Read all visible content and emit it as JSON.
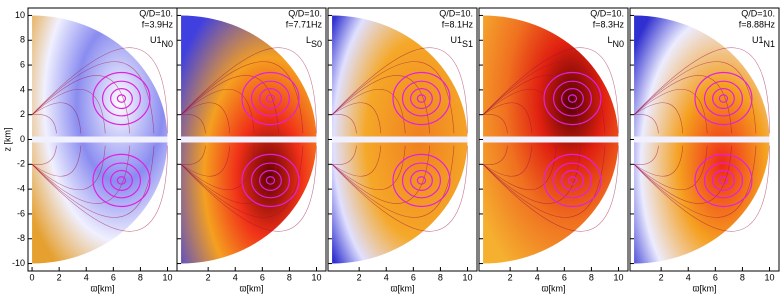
{
  "chart_data": [
    {
      "type": "field",
      "annotation": [
        "Q/D=10.",
        "f=3.9Hz"
      ],
      "mode": "U1",
      "mode_sub": "N0",
      "xlabel": "ϖ[km]",
      "ylabel": "z [km]",
      "show_yticklabels": true,
      "xlim": [
        -0.3,
        10.7
      ],
      "ylim": [
        -10.6,
        10.6
      ],
      "xticks": [
        0,
        2,
        4,
        6,
        8,
        10
      ],
      "yticks": [
        -10,
        -8,
        -6,
        -4,
        -2,
        0,
        2,
        4,
        6,
        8,
        10
      ]
    },
    {
      "type": "field",
      "annotation": [
        "Q/D=10.",
        "f=7.71Hz"
      ],
      "mode": "L",
      "mode_sub": "S0",
      "xlabel": "ϖ[km]",
      "show_yticklabels": false,
      "xlim": [
        -0.3,
        10.7
      ],
      "ylim": [
        -10.6,
        10.6
      ],
      "xticks": [
        2,
        4,
        6,
        8,
        10
      ],
      "yticks": [
        -10,
        -8,
        -6,
        -4,
        -2,
        0,
        2,
        4,
        6,
        8,
        10
      ]
    },
    {
      "type": "field",
      "annotation": [
        "Q/D=10.",
        "f=8.1Hz"
      ],
      "mode": "U1",
      "mode_sub": "S1",
      "xlabel": "ϖ[km]",
      "show_yticklabels": false,
      "xlim": [
        -0.3,
        10.7
      ],
      "ylim": [
        -10.6,
        10.6
      ],
      "xticks": [
        2,
        4,
        6,
        8,
        10
      ],
      "yticks": [
        -10,
        -8,
        -6,
        -4,
        -2,
        0,
        2,
        4,
        6,
        8,
        10
      ]
    },
    {
      "type": "field",
      "annotation": [
        "Q/D=10.",
        "f=8.3Hz"
      ],
      "mode": "L",
      "mode_sub": "N0",
      "xlabel": "ϖ[km]",
      "show_yticklabels": false,
      "xlim": [
        -0.3,
        10.7
      ],
      "ylim": [
        -10.6,
        10.6
      ],
      "xticks": [
        2,
        4,
        6,
        8,
        10
      ],
      "yticks": [
        -10,
        -8,
        -6,
        -4,
        -2,
        0,
        2,
        4,
        6,
        8,
        10
      ]
    },
    {
      "type": "field",
      "annotation": [
        "Q/D=10.",
        "f=8.88Hz"
      ],
      "mode": "U1",
      "mode_sub": "N1",
      "xlabel": "ϖ[km]",
      "show_yticklabels": false,
      "xlim": [
        -0.3,
        10.7
      ],
      "ylim": [
        -10.6,
        10.6
      ],
      "xticks": [
        2,
        4,
        6,
        8,
        10
      ],
      "yticks": [
        -10,
        -8,
        -6,
        -4,
        -2,
        0,
        2,
        4,
        6,
        8,
        10
      ]
    }
  ]
}
